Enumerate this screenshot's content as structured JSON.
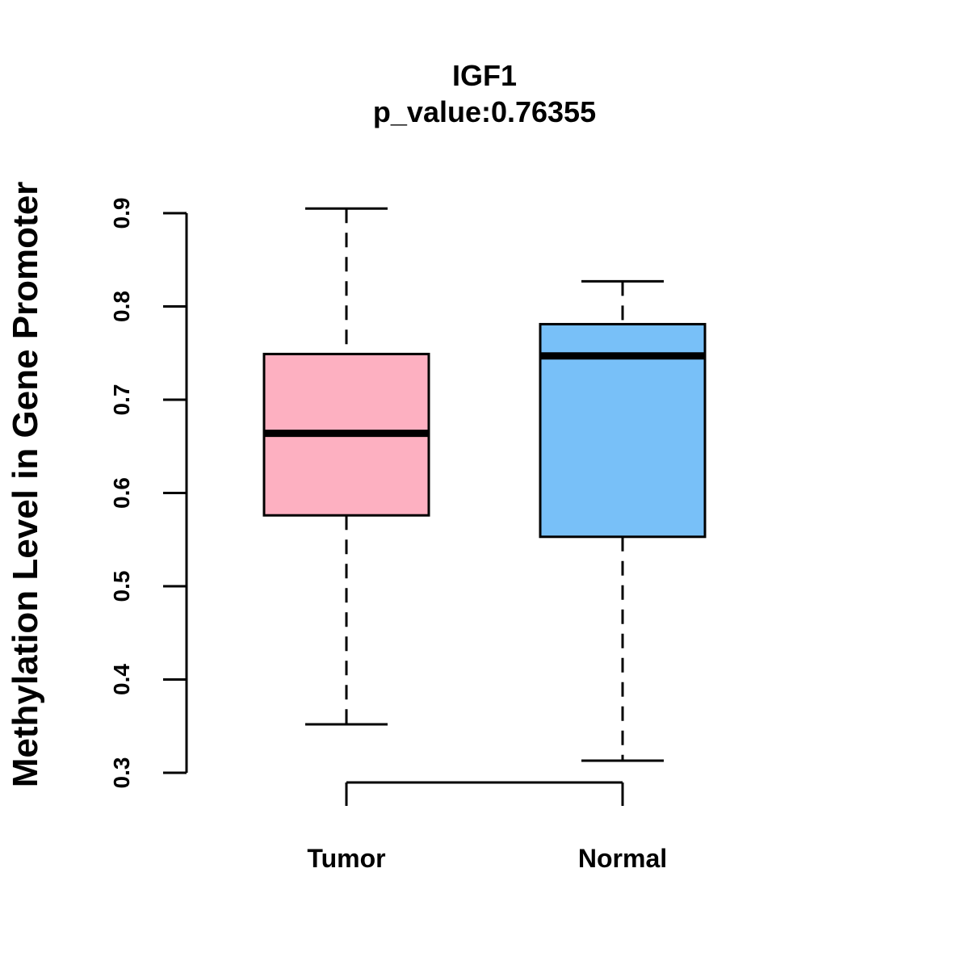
{
  "chart_data": {
    "type": "boxplot",
    "title": "IGF1",
    "subtitle": "p_value:0.76355",
    "xlabel": "",
    "ylabel": "Methylation Level in Gene Promoter",
    "ylim": [
      0.3,
      0.9
    ],
    "yticks": [
      0.3,
      0.4,
      0.5,
      0.6,
      0.7,
      0.8,
      0.9
    ],
    "ytick_labels": [
      "0.3",
      "0.4",
      "0.5",
      "0.6",
      "0.7",
      "0.8",
      "0.9"
    ],
    "grid": false,
    "significance_bracket": true,
    "categories": [
      "Tumor",
      "Normal"
    ],
    "boxes": [
      {
        "name": "Tumor",
        "whisker_low": 0.352,
        "q1": 0.576,
        "median": 0.664,
        "q3": 0.749,
        "whisker_high": 0.905,
        "color": "#FDB0C1"
      },
      {
        "name": "Normal",
        "whisker_low": 0.313,
        "q1": 0.553,
        "median": 0.747,
        "q3": 0.781,
        "whisker_high": 0.827,
        "color": "#78C0F8"
      }
    ]
  }
}
